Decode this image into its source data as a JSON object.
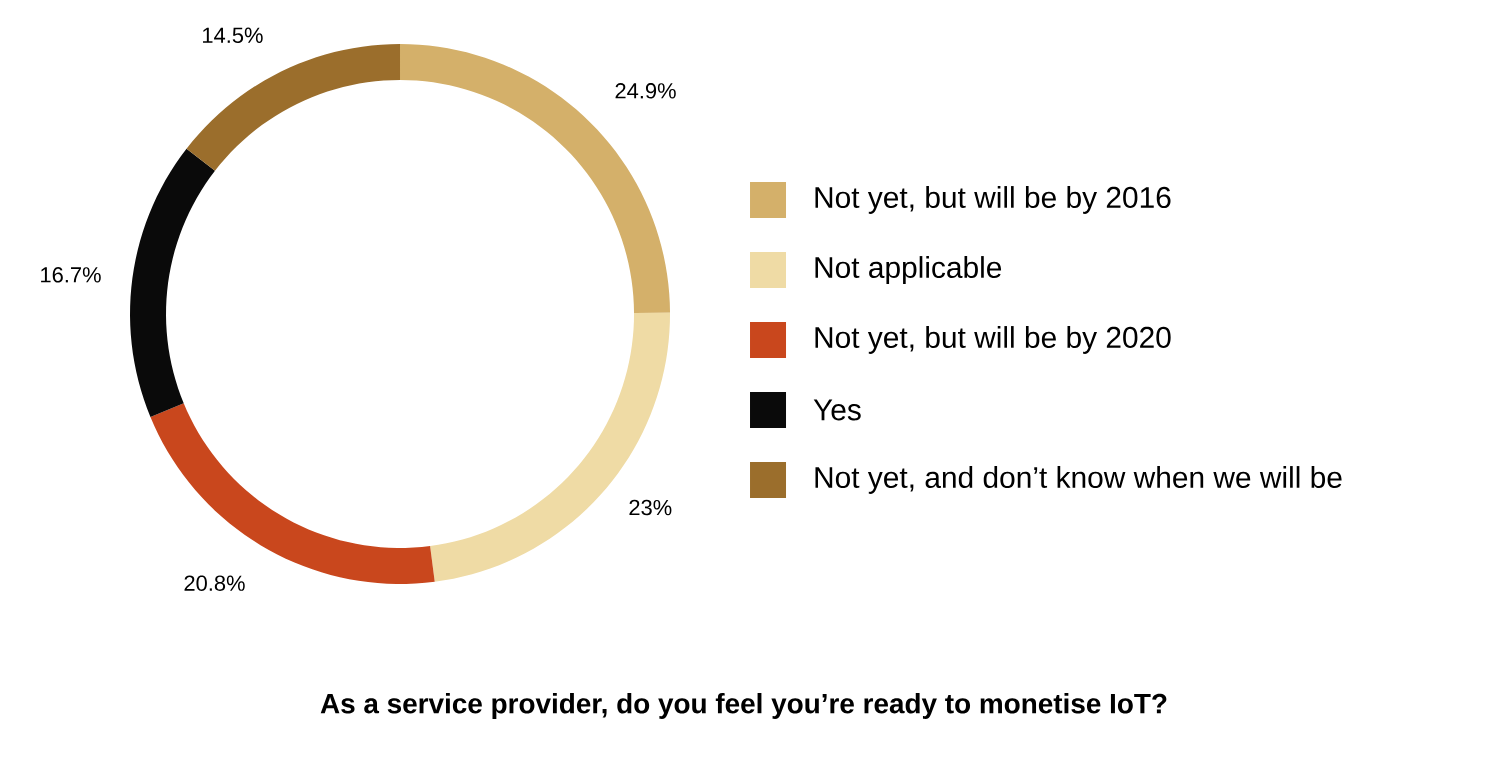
{
  "chart_data": {
    "type": "donut",
    "title": "As a service provider, do you feel you’re ready to monetise IoT?",
    "categories": [
      "Not yet, but will be by 2016",
      "Not applicable",
      "Not yet, but will be by 2020",
      "Yes",
      "Not yet, and don’t know when we will be"
    ],
    "values": [
      24.9,
      23,
      20.8,
      16.7,
      14.5
    ],
    "colors": [
      "#d4b06a",
      "#efdba5",
      "#c9471d",
      "#0a0a0a",
      "#9b6e2c"
    ],
    "value_labels": [
      "24.9%",
      "23%",
      "20.8%",
      "16.7%",
      "14.5%"
    ],
    "legend": "right"
  }
}
